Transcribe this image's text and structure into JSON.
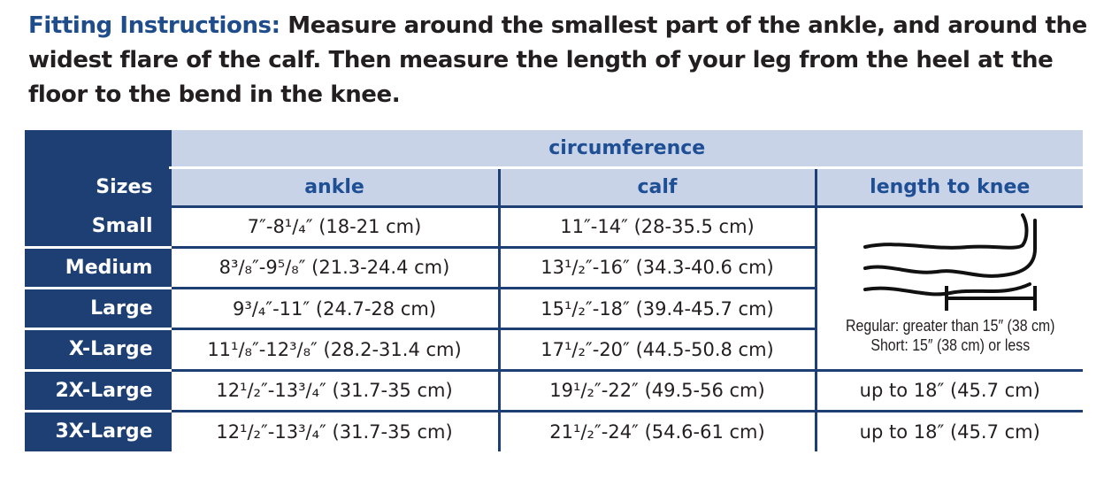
{
  "instructions": {
    "label": "Fitting Instructions:",
    "text": "Measure around the smallest part of the ankle, and around the widest flare of the calf. Then measure the length of your leg from the heel at the floor to the bend in the knee."
  },
  "table": {
    "group_header": "circumference",
    "sizes_header": "Sizes",
    "columns": [
      "ankle",
      "calf",
      "length to knee"
    ],
    "rows": [
      {
        "size": "Small",
        "ankle": "7″-8¹/₄″ (18-21 cm)",
        "calf": "11″-14″ (28-35.5 cm)"
      },
      {
        "size": "Medium",
        "ankle": "8³/₈″-9⁵/₈″ (21.3-24.4 cm)",
        "calf": "13¹/₂″-16″ (34.3-40.6 cm)"
      },
      {
        "size": "Large",
        "ankle": "9³/₄″-11″ (24.7-28 cm)",
        "calf": "15¹/₂″-18″ (39.4-45.7 cm)"
      },
      {
        "size": "X-Large",
        "ankle": "11¹/₈″-12³/₈″ (28.2-31.4 cm)",
        "calf": "17¹/₂″-20″ (44.5-50.8 cm)"
      },
      {
        "size": "2X-Large",
        "ankle": "12¹/₂″-13³/₄″ (31.7-35 cm)",
        "calf": "19¹/₂″-22″ (49.5-56 cm)",
        "length": "up to 18″ (45.7 cm)"
      },
      {
        "size": "3X-Large",
        "ankle": "12¹/₂″-13³/₄″ (31.7-35 cm)",
        "calf": "21¹/₂″-24″ (54.6-61 cm)",
        "length": "up to 18″ (45.7 cm)"
      }
    ],
    "length_note": {
      "regular": "Regular: greater than 15″ (38 cm)",
      "short": "Short: 15″ (38 cm) or less"
    },
    "illustration_icon": "leg-outline-icon"
  }
}
